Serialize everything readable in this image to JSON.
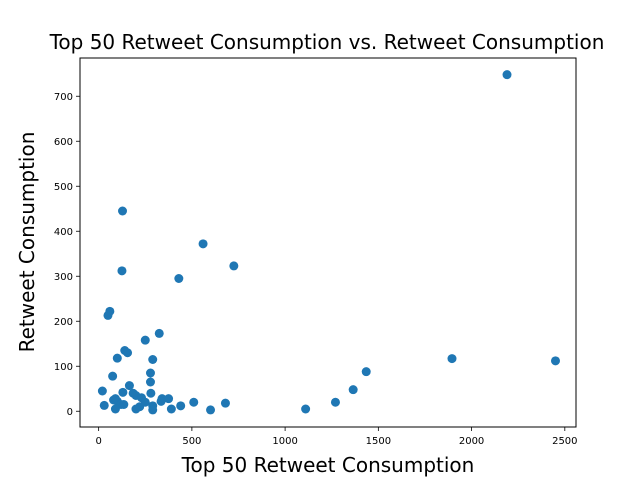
{
  "chart_data": {
    "type": "scatter",
    "title": "Top 50 Retweet Consumption vs. Retweet Consumption",
    "xlabel": "Top 50 Retweet Consumption",
    "ylabel": "Retweet Consumption",
    "xlim": [
      -100,
      2560
    ],
    "ylim": [
      -35,
      785
    ],
    "xticks": [
      0,
      500,
      1000,
      1500,
      2000,
      2500
    ],
    "yticks": [
      0,
      100,
      200,
      300,
      400,
      500,
      600,
      700
    ],
    "grid": false,
    "color": "#1f77b4",
    "x": [
      2190,
      128,
      560,
      725,
      125,
      430,
      60,
      50,
      325,
      250,
      140,
      155,
      100,
      290,
      1895,
      2450,
      1435,
      278,
      1365,
      278,
      165,
      185,
      280,
      200,
      130,
      230,
      20,
      75,
      80,
      90,
      100,
      120,
      340,
      375,
      335,
      30,
      135,
      220,
      290,
      510,
      440,
      680,
      1270,
      1110,
      600,
      390,
      290,
      200,
      90,
      250
    ],
    "y": [
      748,
      445,
      372,
      323,
      312,
      295,
      222,
      213,
      173,
      158,
      135,
      130,
      118,
      115,
      117,
      112,
      88,
      85,
      48,
      65,
      57,
      40,
      40,
      35,
      42,
      30,
      45,
      78,
      25,
      28,
      22,
      15,
      28,
      28,
      22,
      13,
      15,
      10,
      12,
      20,
      12,
      18,
      20,
      5,
      3,
      5,
      3,
      5,
      5,
      20
    ]
  }
}
